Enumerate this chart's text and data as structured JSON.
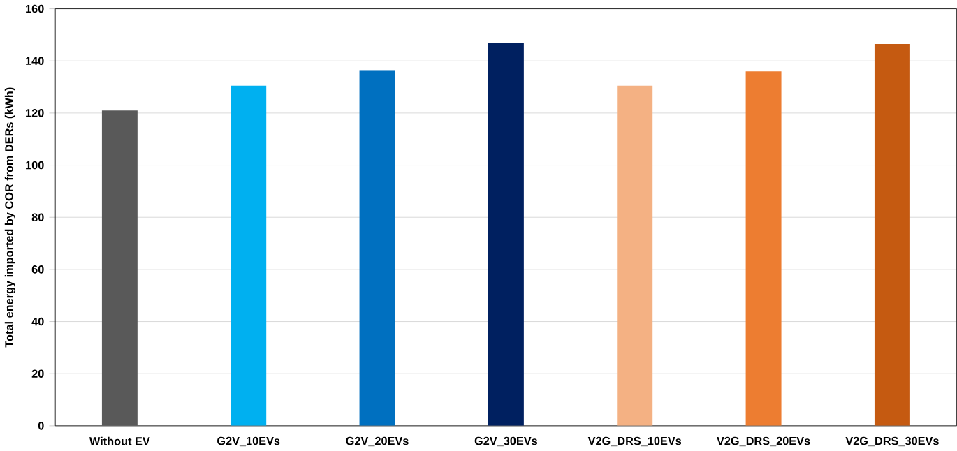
{
  "chart_data": {
    "type": "bar",
    "ylabel": "Total energy imported by COR from DERs (kWh)",
    "categories": [
      "Without EV",
      "G2V_10EVs",
      "G2V_20EVs",
      "G2V_30EVs",
      "V2G_DRS_10EVs",
      "V2G_DRS_20EVs",
      "V2G_DRS_30EVs"
    ],
    "values": [
      121,
      130.5,
      136.5,
      147,
      130.5,
      136,
      146.5
    ],
    "colors": [
      "#595959",
      "#00b0f0",
      "#0070c0",
      "#002060",
      "#f4b183",
      "#ed7d31",
      "#c55a11"
    ],
    "ylim": [
      0,
      160
    ],
    "yticks": [
      0,
      20,
      40,
      60,
      80,
      100,
      120,
      140,
      160
    ],
    "grid": "y"
  }
}
